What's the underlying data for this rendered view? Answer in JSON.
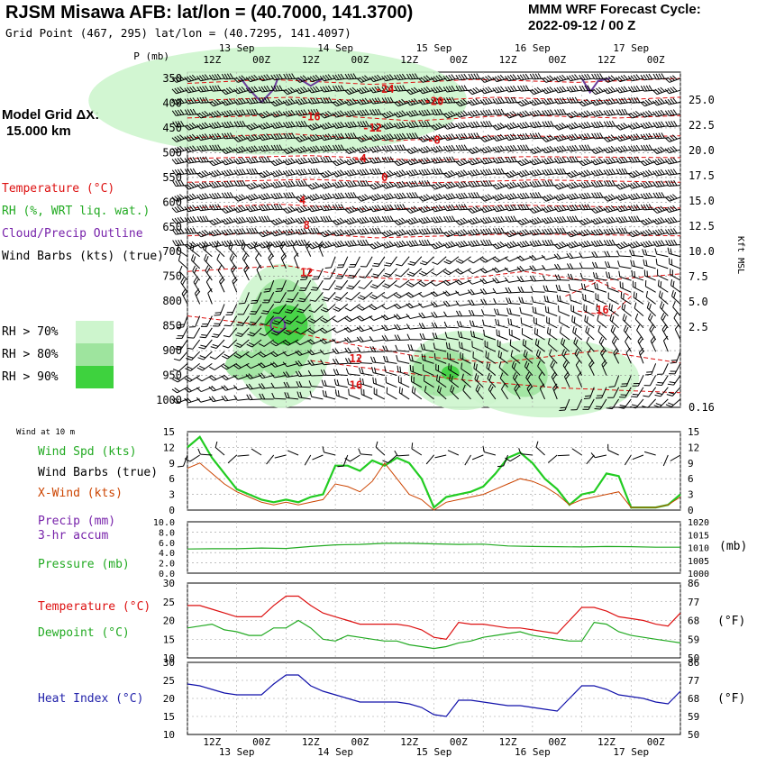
{
  "header": {
    "title": "RJSM Misawa AFB:  lat/lon = (40.7000, 141.3700)",
    "grid_point": "Grid Point (467, 295) lat/lon = (40.7295, 141.4097)",
    "cycle_line1": "MMM WRF Forecast Cycle:",
    "cycle_line2": "2022-09-12 / 00  Z",
    "model_grid_line1": "Model Grid ΔX:",
    "model_grid_line2": "15.000 km"
  },
  "legend": {
    "temperature": "Temperature (°C)",
    "rh": "RH (%, WRT liq. wat.)",
    "cloud": "Cloud/Precip Outline",
    "barbs": "Wind Barbs (kts) (true)",
    "rh70": "RH > 70%",
    "rh80": "RH > 80%",
    "rh90": "RH > 90%",
    "wind10m": "Wind at 10 m",
    "wind_spd": "Wind Spd (kts)",
    "wind_barbs": "Wind Barbs (true)",
    "xwind": "X-Wind (kts)",
    "precip1": "Precip (mm)",
    "precip2": "3-hr accum",
    "pressure": "Pressure (mb)",
    "temp_c": "Temperature (°C)",
    "dew_c": "Dewpoint (°C)",
    "heat": "Heat Index (°C)",
    "f_unit": "(°F)",
    "mb_unit": "(mb)",
    "kft_label": "Kft MSL",
    "p_label": "P (mb)"
  },
  "colors": {
    "temp": "#dd1111",
    "rh70": "#cdf5cd",
    "rh80": "#9ee49e",
    "rh90": "#3ed23e",
    "cloud": "#6a3d9a",
    "spd": "#22cc22",
    "xwind": "#cc4400",
    "pressure": "#22aa22",
    "heat": "#1111aa",
    "legend_purple": "#7722aa",
    "legend_blue": "#2222aa"
  },
  "chart_data": [
    {
      "type": "line",
      "name": "cross-section",
      "title": "Time-pressure cross section",
      "top_time_labels": [
        "12Z",
        "00Z",
        "12Z",
        "00Z",
        "12Z",
        "00Z",
        "12Z",
        "00Z",
        "12Z",
        "00Z"
      ],
      "date_labels": [
        "13 Sep",
        "14 Sep",
        "15 Sep",
        "16 Sep",
        "17 Sep"
      ],
      "pressure_levels": [
        350,
        400,
        450,
        500,
        550,
        600,
        650,
        700,
        750,
        800,
        850,
        900,
        950,
        1000
      ],
      "ylabel": "P (mb)",
      "height_ticks": [
        "25.0",
        "22.5",
        "20.0",
        "17.5",
        "15.0",
        "12.5",
        "10.0",
        "7.5",
        "5.0",
        "2.5",
        "0.16"
      ],
      "height_label": "Kft MSL",
      "x_range_hours": [
        0,
        120
      ],
      "temp_labels": [
        {
          "t": 48,
          "p": 372,
          "label": "-24"
        },
        {
          "t": 60,
          "p": 396,
          "label": "-20"
        },
        {
          "t": 30,
          "p": 427,
          "label": "-16"
        },
        {
          "t": 45,
          "p": 450,
          "label": "-12"
        },
        {
          "t": 60,
          "p": 475,
          "label": "-8"
        },
        {
          "t": 42,
          "p": 512,
          "label": "-4"
        },
        {
          "t": 48,
          "p": 550,
          "label": "0"
        },
        {
          "t": 28,
          "p": 597,
          "label": "4"
        },
        {
          "t": 29,
          "p": 647,
          "label": "8"
        },
        {
          "t": 29,
          "p": 742,
          "label": "12"
        },
        {
          "t": 41,
          "p": 916,
          "label": "12"
        },
        {
          "t": 41,
          "p": 970,
          "label": "16"
        },
        {
          "t": 101,
          "p": 818,
          "label": "16"
        }
      ],
      "rh_thresholds": [
        "RH > 70%",
        "RH > 80%",
        "RH > 90%"
      ]
    },
    {
      "type": "line",
      "name": "wind-10m",
      "x_hours": [
        0,
        3,
        6,
        9,
        12,
        15,
        18,
        21,
        24,
        27,
        30,
        33,
        36,
        39,
        42,
        45,
        48,
        51,
        54,
        57,
        60,
        63,
        66,
        69,
        72,
        75,
        78,
        81,
        84,
        87,
        90,
        93,
        96,
        99,
        102,
        105,
        108,
        111,
        114,
        117,
        120
      ],
      "series": [
        {
          "name": "Wind Spd (kts)",
          "values": [
            12,
            14,
            10,
            7,
            4,
            3,
            2,
            1.5,
            2,
            1.5,
            2.5,
            3,
            8.5,
            8.5,
            7.5,
            9.5,
            8.5,
            10,
            9,
            6,
            0.5,
            2.5,
            3,
            3.5,
            4.5,
            7,
            10,
            11,
            9,
            6,
            4,
            1,
            3,
            3.5,
            7,
            6.5,
            0.5,
            0.5,
            0.5,
            1,
            3
          ]
        },
        {
          "name": "X-Wind (kts)",
          "values": [
            8,
            9,
            7,
            5,
            3.5,
            2.5,
            1.5,
            1,
            1.5,
            1,
            1.5,
            2,
            5,
            4.5,
            3.5,
            5.5,
            9,
            6,
            3,
            2,
            0,
            1.5,
            2,
            2.5,
            3,
            4,
            5,
            6,
            5.5,
            4.5,
            3,
            1,
            2,
            2.5,
            3,
            3.5,
            0.5,
            0.5,
            0.5,
            1,
            2.5
          ]
        }
      ],
      "ylim": [
        0,
        15
      ],
      "yticks_left": [
        "15",
        "12",
        "9",
        "6",
        "3",
        "0"
      ],
      "yticks_right": [
        "15",
        "12",
        "9",
        "6",
        "3",
        "0"
      ]
    },
    {
      "type": "line",
      "name": "pressure",
      "x_hours": [
        0,
        6,
        12,
        18,
        24,
        30,
        36,
        42,
        48,
        54,
        60,
        66,
        72,
        78,
        84,
        90,
        96,
        102,
        108,
        114,
        120
      ],
      "series": [
        {
          "name": "Pressure (mb)",
          "values": [
            1009.4,
            1009.5,
            1009.5,
            1009.8,
            1009.6,
            1010.4,
            1011.0,
            1011.2,
            1011.6,
            1011.6,
            1011.4,
            1011.2,
            1011.3,
            1010.6,
            1010.4,
            1010.3,
            1010.2,
            1010.4,
            1010.3,
            1010.1,
            1010.1
          ]
        }
      ],
      "ylim_left": [
        0,
        10
      ],
      "ylim_right": [
        1000,
        1020
      ],
      "yticks_left": [
        "10.0",
        "8.0",
        "6.0",
        "4.0",
        "2.0",
        "0.0"
      ],
      "yticks_right": [
        "1020",
        "1015",
        "1010",
        "1005",
        "1000"
      ]
    },
    {
      "type": "line",
      "name": "temperature",
      "x_hours": [
        0,
        3,
        6,
        9,
        12,
        15,
        18,
        21,
        24,
        27,
        30,
        33,
        36,
        39,
        42,
        45,
        48,
        51,
        54,
        57,
        60,
        63,
        66,
        69,
        72,
        75,
        78,
        81,
        84,
        87,
        90,
        93,
        96,
        99,
        102,
        105,
        108,
        111,
        114,
        117,
        120
      ],
      "series": [
        {
          "name": "Temperature (°C)",
          "values": [
            24,
            24,
            23,
            22,
            21,
            21,
            21,
            24,
            26.5,
            26.5,
            24,
            22,
            21,
            20,
            19,
            19,
            19,
            19,
            18.5,
            17.5,
            15.5,
            15,
            19.5,
            19,
            19,
            18.5,
            18,
            18,
            17.5,
            17,
            16.5,
            20,
            23.5,
            23.5,
            22.5,
            21,
            20.5,
            20,
            19,
            18.5,
            22
          ]
        },
        {
          "name": "Dewpoint (°C)",
          "values": [
            18,
            18.5,
            19,
            17.5,
            17,
            16,
            16,
            18,
            18,
            20,
            18,
            15,
            14.5,
            16,
            15.5,
            15,
            14.5,
            14.5,
            13.5,
            13,
            12.5,
            13,
            14,
            14.5,
            15.5,
            16,
            16.5,
            17,
            16,
            15.5,
            15,
            14.5,
            14.5,
            19.5,
            19,
            17,
            16,
            15.5,
            15,
            14.5,
            14
          ]
        }
      ],
      "ylim": [
        10,
        30
      ],
      "yticks_left": [
        "30",
        "25",
        "20",
        "15",
        "10"
      ],
      "yticks_right": [
        "86",
        "77",
        "68",
        "59",
        "50"
      ]
    },
    {
      "type": "line",
      "name": "heat-index",
      "x_hours": [
        0,
        3,
        6,
        9,
        12,
        15,
        18,
        21,
        24,
        27,
        30,
        33,
        36,
        39,
        42,
        45,
        48,
        51,
        54,
        57,
        60,
        63,
        66,
        69,
        72,
        75,
        78,
        81,
        84,
        87,
        90,
        93,
        96,
        99,
        102,
        105,
        108,
        111,
        114,
        117,
        120
      ],
      "series": [
        {
          "name": "Heat Index (°C)",
          "values": [
            24,
            23.5,
            22.5,
            21.5,
            21,
            21,
            21,
            24,
            26.5,
            26.5,
            23.5,
            22,
            21,
            20,
            19,
            19,
            19,
            19,
            18.5,
            17.5,
            15.5,
            15,
            19.5,
            19.5,
            19,
            18.5,
            18,
            18,
            17.5,
            17,
            16.5,
            20,
            23.5,
            23.5,
            22.5,
            21,
            20.5,
            20,
            19,
            18.5,
            22
          ]
        }
      ],
      "ylim": [
        10,
        30
      ],
      "yticks_left": [
        "30",
        "25",
        "20",
        "15",
        "10"
      ],
      "yticks_right": [
        "86",
        "77",
        "68",
        "59",
        "50"
      ],
      "bottom_time_labels": [
        "12Z",
        "00Z",
        "12Z",
        "00Z",
        "12Z",
        "00Z",
        "12Z",
        "00Z",
        "12Z",
        "00Z"
      ],
      "bottom_date_labels": [
        "13 Sep",
        "14 Sep",
        "15 Sep",
        "16 Sep",
        "17 Sep"
      ]
    }
  ]
}
